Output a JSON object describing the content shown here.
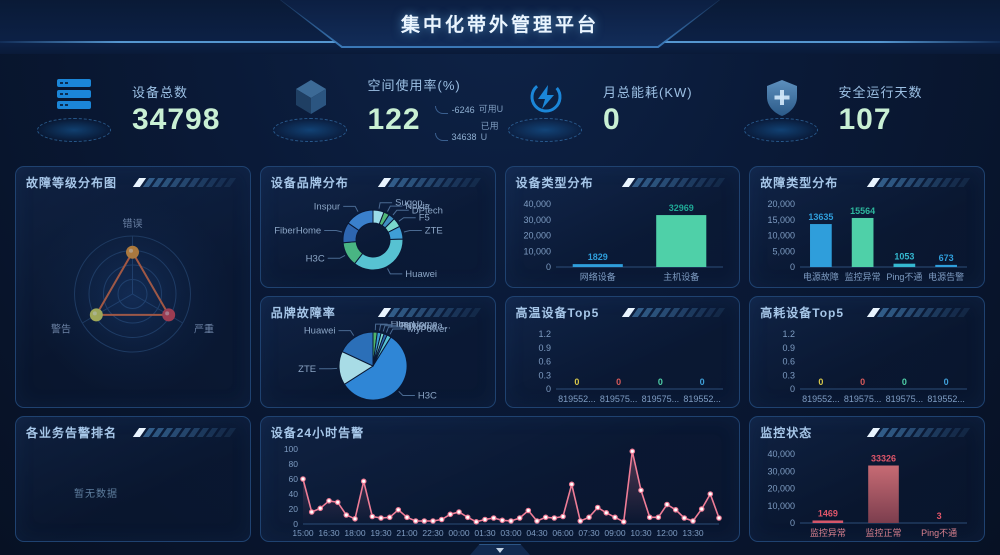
{
  "header": {
    "title": "集中化带外管理平台"
  },
  "kpis": [
    {
      "icon": "server-icon",
      "label": "设备总数",
      "value": "34798"
    },
    {
      "icon": "cube-icon",
      "label": "空间使用率(%)",
      "value": "122",
      "extra": [
        {
          "num": "-6246",
          "unit": "可用U"
        },
        {
          "num": "34638",
          "unit": "已用U"
        }
      ]
    },
    {
      "icon": "energy-icon",
      "label": "月总能耗(KW)",
      "value": "0"
    },
    {
      "icon": "shield-icon",
      "label": "安全运行天数",
      "value": "107"
    }
  ],
  "panels": {
    "fault_level": {
      "title": "故障等级分布图"
    },
    "brand_dist": {
      "title": "设备品牌分布"
    },
    "device_type": {
      "title": "设备类型分布"
    },
    "fault_type": {
      "title": "故障类型分布"
    },
    "brand_fault": {
      "title": "品牌故障率"
    },
    "high_temp": {
      "title": "高温设备Top5"
    },
    "high_power": {
      "title": "高耗设备Top5"
    },
    "biz_alarm": {
      "title": "各业务告警排名",
      "empty_text": "暂无数据"
    },
    "alarm_24h": {
      "title": "设备24小时告警"
    },
    "monitor_status": {
      "title": "监控状态"
    }
  },
  "chart_data": [
    {
      "id": "fault_level",
      "type": "radar",
      "title": "故障等级分布图",
      "axes": [
        "错误",
        "严重",
        "警告"
      ],
      "point_colors": [
        "#e8952f",
        "#d43f4a",
        "#d8d855"
      ],
      "values": [
        1,
        1,
        1
      ],
      "value_radius_ratio": 0.72,
      "line_color": "#e2652f",
      "grid_color": "#223f66"
    },
    {
      "id": "brand_dist",
      "type": "donut",
      "title": "设备品牌分布",
      "slices": [
        {
          "label": "Sugon...",
          "value": 6,
          "color": "#9adce8"
        },
        {
          "label": "Nokia",
          "value": 3,
          "color": "#52b878"
        },
        {
          "label": "DPtech",
          "value": 3.5,
          "color": "#3f8fc0"
        },
        {
          "label": "F5",
          "value": 5,
          "color": "#7ad8cc"
        },
        {
          "label": "ZTE",
          "value": 7,
          "color": "#3f9ed6"
        },
        {
          "label": "Huawei",
          "value": 36,
          "color": "#57c2d2"
        },
        {
          "label": "H3C",
          "value": 13,
          "color": "#49b583"
        },
        {
          "label": "FiberHome",
          "value": 11,
          "color": "#2e66b0"
        },
        {
          "label": "Inspur",
          "value": 15.5,
          "color": "#3a80cc"
        }
      ]
    },
    {
      "id": "device_type",
      "type": "bar",
      "title": "设备类型分布",
      "ylim": [
        0,
        40000
      ],
      "yticks": [
        "0",
        "10,000",
        "20,000",
        "30,000",
        "40,000"
      ],
      "bar_ratio": 0.6,
      "categories": [
        {
          "label": "网络设备",
          "value": 1829,
          "color": "#2f9edb"
        },
        {
          "label": "主机设备",
          "value": 32969,
          "color": "#4fd0a8",
          "label_color": "#1fa896"
        }
      ]
    },
    {
      "id": "fault_type",
      "type": "bar",
      "title": "故障类型分布",
      "ylim": [
        0,
        20000
      ],
      "yticks": [
        "0",
        "5,000",
        "10,000",
        "15,000",
        "20,000"
      ],
      "bar_ratio": 0.52,
      "categories": [
        {
          "label": "电源故障",
          "value": 13635,
          "color": "#2f9edb"
        },
        {
          "label": "监控异常",
          "value": 15564,
          "color": "#4fd0a8",
          "label_color": "#2db89d"
        },
        {
          "label": "Ping不通",
          "value": 1053,
          "color": "#35b8d0"
        },
        {
          "label": "电源告警",
          "value": 673,
          "color": "#2f9edb"
        }
      ]
    },
    {
      "id": "brand_fault",
      "type": "pie",
      "title": "品牌故障率",
      "slices": [
        {
          "label": "FiberHome",
          "value": 2,
          "color": "#4db56a"
        },
        {
          "label": "Inspur",
          "value": 1.8,
          "color": "#3a9bd5"
        },
        {
          "label": "PowerLea...",
          "value": 1.5,
          "color": "#7ad8cc"
        },
        {
          "label": "foxconn",
          "value": 1.5,
          "color": "#2e66b0"
        },
        {
          "label": "MyPower",
          "value": 2,
          "color": "#57c2d2"
        },
        {
          "label": "H3C",
          "value": 57,
          "color": "#2f86d6"
        },
        {
          "label": "ZTE",
          "value": 16,
          "color": "#a8dce6"
        },
        {
          "label": "Huawei",
          "value": 18,
          "color": "#2b6fb8"
        }
      ]
    },
    {
      "id": "high_temp",
      "type": "bar",
      "title": "高温设备Top5",
      "ylim": [
        0,
        1.2
      ],
      "yticks": [
        "0",
        "0.3",
        "0.6",
        "0.9",
        "1.2"
      ],
      "bar_ratio": 0.5,
      "categories": [
        {
          "label": "819552...",
          "value": 0,
          "color": "#d8c84a",
          "label_color": "#d8c84a"
        },
        {
          "label": "819575...",
          "value": 0,
          "color": "#d85a5a",
          "label_color": "#d85a5a"
        },
        {
          "label": "819575...",
          "value": 0,
          "color": "#4fd0a8",
          "label_color": "#4fd0a8"
        },
        {
          "label": "819552...",
          "value": 0,
          "color": "#3f9fd8",
          "label_color": "#3f9fd8"
        }
      ]
    },
    {
      "id": "high_power",
      "type": "bar",
      "title": "高耗设备Top5",
      "ylim": [
        0,
        1.2
      ],
      "yticks": [
        "0",
        "0.3",
        "0.6",
        "0.9",
        "1.2"
      ],
      "bar_ratio": 0.5,
      "categories": [
        {
          "label": "819552...",
          "value": 0,
          "color": "#d8c84a",
          "label_color": "#d8c84a"
        },
        {
          "label": "819575...",
          "value": 0,
          "color": "#d85a5a",
          "label_color": "#d85a5a"
        },
        {
          "label": "819575...",
          "value": 0,
          "color": "#4fd0a8",
          "label_color": "#4fd0a8"
        },
        {
          "label": "819552...",
          "value": 0,
          "color": "#3f9fd8",
          "label_color": "#3f9fd8"
        }
      ]
    },
    {
      "id": "alarm_24h",
      "type": "line",
      "title": "设备24小时告警",
      "ylim": [
        0,
        100
      ],
      "yticks": [
        "0",
        "20",
        "40",
        "60",
        "80",
        "100"
      ],
      "x_labels": [
        "15:00",
        "16:30",
        "18:00",
        "19:30",
        "21:00",
        "22:30",
        "00:00",
        "01:30",
        "03:00",
        "04:30",
        "06:00",
        "07:30",
        "09:00",
        "10:30",
        "12:00",
        "13:30"
      ],
      "values": [
        60,
        16,
        21,
        31,
        29,
        12,
        7,
        57,
        10,
        8,
        9,
        19,
        9,
        4,
        4,
        4,
        6,
        13,
        16,
        9,
        3,
        6,
        8,
        5,
        4,
        8,
        18,
        4,
        9,
        8,
        10,
        53,
        4,
        9,
        22,
        15,
        9,
        3,
        97,
        45,
        9,
        9,
        26,
        19,
        8,
        4,
        20,
        40,
        8
      ],
      "color": "#ef7d97"
    },
    {
      "id": "monitor_status",
      "type": "bar",
      "title": "监控状态",
      "ylim": [
        0,
        40000
      ],
      "yticks": [
        "0",
        "10,000",
        "20,000",
        "30,000",
        "40,000"
      ],
      "bar_ratio": 0.55,
      "cat_color": "#d8808e",
      "categories": [
        {
          "label": "监控异常",
          "value": 1469,
          "color": "#d4566a",
          "label_color": "#e0566a"
        },
        {
          "label": "监控正常",
          "value": 33326,
          "color": "#c76b74",
          "gradient": [
            "#c76b74",
            "#7c3e4e"
          ],
          "label_color": "#e0566a"
        },
        {
          "label": "Ping不通",
          "value": 3,
          "color": "#d4566a",
          "label_color": "#e0566a"
        }
      ]
    }
  ]
}
